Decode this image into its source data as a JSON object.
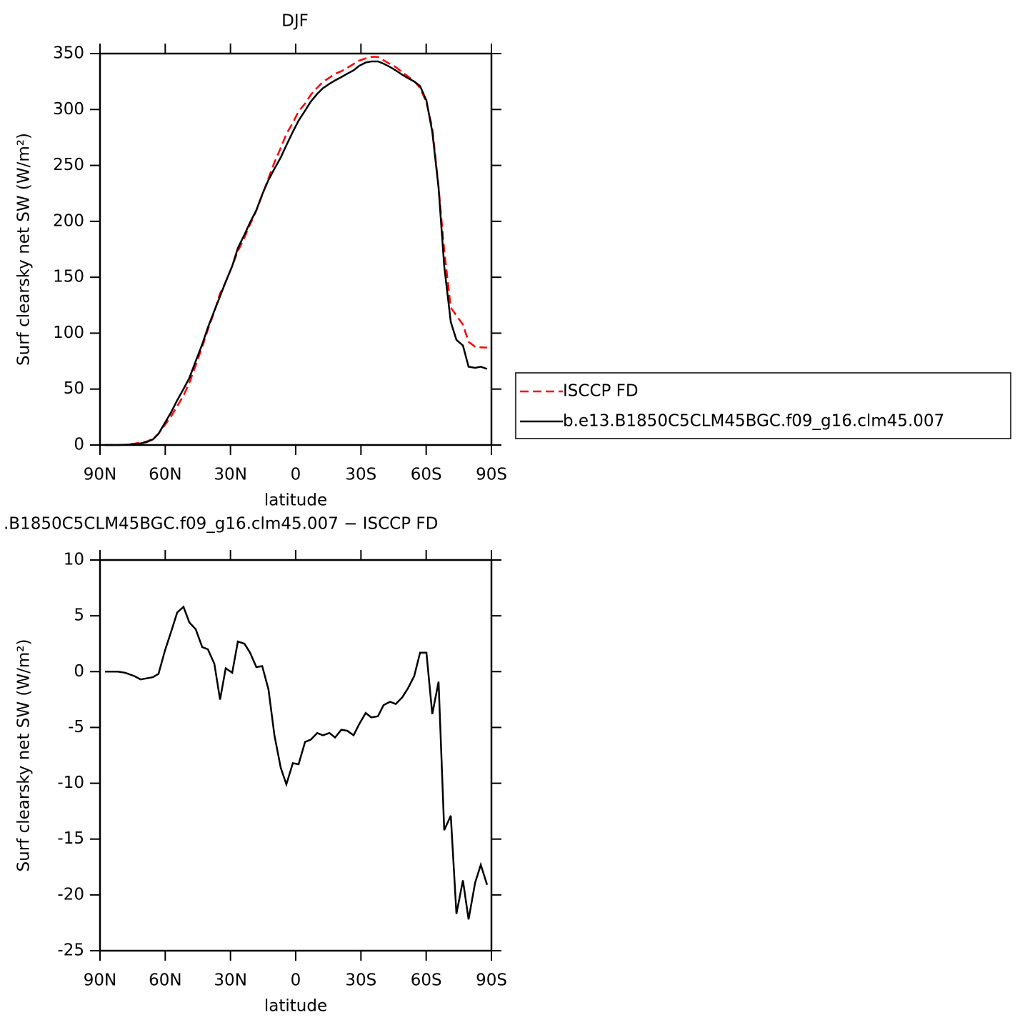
{
  "chart_data": [
    {
      "type": "line",
      "title": "DJF",
      "xlabel": "latitude",
      "ylabel": "Surf clearsky net SW (W/m²)",
      "x": [
        87.7,
        81.8,
        78.5,
        74.2,
        71.3,
        68.6,
        65.7,
        63.1,
        60.1,
        57.1,
        54.5,
        51.6,
        48.9,
        46.0,
        43.0,
        40.4,
        37.4,
        34.8,
        32.2,
        29.2,
        26.6,
        23.6,
        21.0,
        18.1,
        15.4,
        12.5,
        9.8,
        6.9,
        4.3,
        1.3,
        -1.3,
        -4.3,
        -6.9,
        -9.9,
        -12.5,
        -15.5,
        -18.1,
        -21.0,
        -23.7,
        -26.6,
        -29.2,
        -32.2,
        -34.8,
        -37.8,
        -40.4,
        -43.4,
        -46.0,
        -49.0,
        -51.6,
        -54.5,
        -57.2,
        -60.1,
        -62.8,
        -65.7,
        -68.3,
        -71.3,
        -73.9,
        -76.9,
        -79.5,
        -82.5,
        -85.1,
        -88.0
      ],
      "series": [
        {
          "name": "ISCCP FD",
          "color": "#ff0000",
          "dashed": true,
          "values": [
            0,
            0,
            0.3,
            1.2,
            2.2,
            3.1,
            5.5,
            10.2,
            18.1,
            26.3,
            34.7,
            44.2,
            55.6,
            71.2,
            87.8,
            103,
            119.3,
            135.5,
            145.7,
            160.1,
            173.3,
            185.5,
            197.3,
            209.6,
            223.5,
            238.6,
            252.7,
            265.6,
            278.1,
            288.2,
            298.3,
            305.3,
            313.1,
            319.5,
            324.7,
            328.5,
            331.9,
            334.2,
            337.3,
            340.7,
            343.7,
            345.7,
            347.1,
            347,
            344,
            340.7,
            337.9,
            333.3,
            329.5,
            325.4,
            319.3,
            306.3,
            283.8,
            230.9,
            174.2,
            122.9,
            115.7,
            107.7,
            92.2,
            87.9,
            87.3,
            87.1
          ]
        },
        {
          "name": "b.e13.B1850C5CLM45BGC.f09_g16.clm45.007",
          "color": "#000000",
          "dashed": false,
          "values": [
            0,
            0,
            0.2,
            0.8,
            1.5,
            2.5,
            5,
            10,
            20,
            30,
            40,
            50,
            60,
            75,
            90,
            105,
            120,
            133,
            146,
            160,
            176,
            188,
            199,
            210,
            224,
            237,
            247,
            257,
            268,
            280,
            290,
            299,
            307,
            314,
            319,
            323,
            326,
            329,
            332,
            335,
            339,
            342,
            343,
            343,
            341,
            338,
            335,
            331,
            328,
            325,
            321,
            308,
            280,
            230,
            160,
            110,
            94,
            89,
            70,
            69,
            70,
            68
          ]
        }
      ],
      "xlim": [
        90,
        -90
      ],
      "xticks": [
        {
          "value": 90,
          "label": "90N"
        },
        {
          "value": 60,
          "label": "60N"
        },
        {
          "value": 30,
          "label": "30N"
        },
        0,
        {
          "value": -30,
          "label": "30S"
        },
        {
          "value": -60,
          "label": "60S"
        },
        {
          "value": -90,
          "label": "90S"
        }
      ],
      "ylim": [
        0,
        350
      ],
      "yticks": [
        0,
        50,
        100,
        150,
        200,
        250,
        300,
        350
      ],
      "legend": "right"
    },
    {
      "type": "line",
      "title": ".B1850C5CLM45BGC.f09_g16.clm45.007 − ISCCP FD",
      "xlabel": "latitude",
      "ylabel": "Surf clearsky net SW (W/m²)",
      "x": [
        87.7,
        81.8,
        78.5,
        74.2,
        71.3,
        68.6,
        65.7,
        63.1,
        60.1,
        57.1,
        54.5,
        51.6,
        48.9,
        46.0,
        43.0,
        40.4,
        37.4,
        34.8,
        32.2,
        29.2,
        26.6,
        23.6,
        21.0,
        18.1,
        15.4,
        12.5,
        9.8,
        6.9,
        4.3,
        1.3,
        -1.3,
        -4.3,
        -6.9,
        -9.9,
        -12.5,
        -15.5,
        -18.1,
        -21.0,
        -23.7,
        -26.6,
        -29.2,
        -32.2,
        -34.8,
        -37.8,
        -40.4,
        -43.4,
        -46.0,
        -49.0,
        -51.6,
        -54.5,
        -57.2,
        -60.1,
        -62.8,
        -65.7,
        -68.3,
        -71.3,
        -73.9,
        -76.9,
        -79.5,
        -82.5,
        -85.1,
        -88.0
      ],
      "series": [
        {
          "color": "#000000",
          "dashed": false,
          "values": [
            0,
            0,
            -0.1,
            -0.4,
            -0.7,
            -0.6,
            -0.5,
            -0.2,
            1.9,
            3.7,
            5.3,
            5.8,
            4.4,
            3.8,
            2.2,
            2.0,
            0.7,
            -2.5,
            0.3,
            -0.1,
            2.7,
            2.5,
            1.7,
            0.4,
            0.5,
            -1.6,
            -5.7,
            -8.6,
            -10.1,
            -8.2,
            -8.3,
            -6.3,
            -6.1,
            -5.5,
            -5.7,
            -5.5,
            -5.9,
            -5.2,
            -5.3,
            -5.7,
            -4.7,
            -3.7,
            -4.1,
            -4.0,
            -3.0,
            -2.7,
            -2.9,
            -2.3,
            -1.5,
            -0.4,
            1.7,
            1.7,
            -3.8,
            -0.9,
            -14.2,
            -12.9,
            -21.7,
            -18.7,
            -22.2,
            -18.9,
            -17.3,
            -19.1
          ]
        }
      ],
      "xlim": [
        90,
        -90
      ],
      "xticks": [
        {
          "value": 90,
          "label": "90N"
        },
        {
          "value": 60,
          "label": "60N"
        },
        {
          "value": 30,
          "label": "30N"
        },
        0,
        {
          "value": -30,
          "label": "30S"
        },
        {
          "value": -60,
          "label": "60S"
        },
        {
          "value": -90,
          "label": "90S"
        }
      ],
      "ylim": [
        -25,
        10
      ],
      "yticks": [
        -25,
        -20,
        -15,
        -10,
        -5,
        0,
        5,
        10
      ]
    }
  ]
}
